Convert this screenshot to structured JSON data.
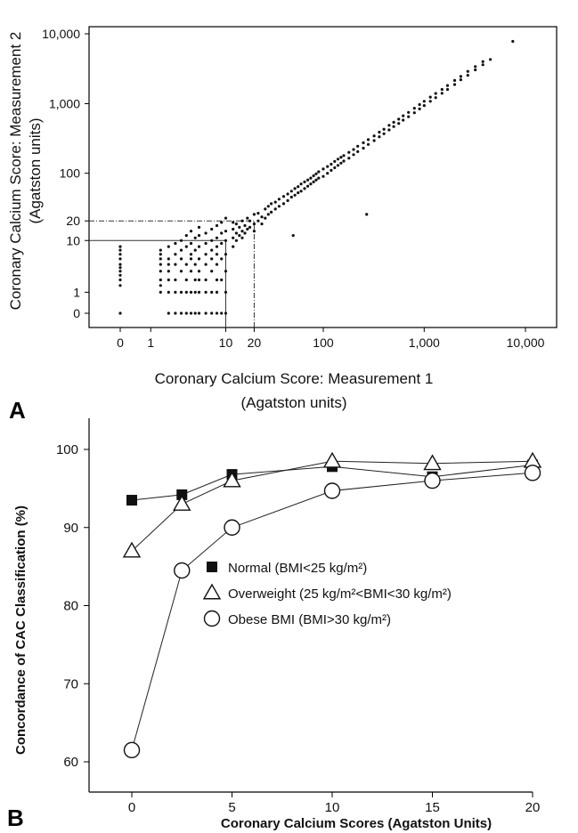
{
  "chart_data": [
    {
      "panel": "A",
      "type": "scatter",
      "xlabel": "Coronary Calcium Score: Measurement 1",
      "xlabel_units": "(Agatston units)",
      "ylabel": "Coronary Calcium Score: Measurement 2",
      "ylabel_units": "(Agatston units)",
      "x_scale": "log1p",
      "y_scale": "log1p",
      "x_ticks": [
        {
          "value": 0,
          "label": "0"
        },
        {
          "value": 1,
          "label": "1"
        },
        {
          "value": 10,
          "label": "10"
        },
        {
          "value": 20,
          "label": "20"
        },
        {
          "value": 100,
          "label": "100"
        },
        {
          "value": 1000,
          "label": "1,000"
        },
        {
          "value": 10000,
          "label": "10,000"
        }
      ],
      "y_ticks": [
        {
          "value": 0,
          "label": "0"
        },
        {
          "value": 1,
          "label": "1"
        },
        {
          "value": 10,
          "label": "10"
        },
        {
          "value": 20,
          "label": "20"
        },
        {
          "value": 100,
          "label": "100"
        },
        {
          "value": 1000,
          "label": "1,000"
        },
        {
          "value": 10000,
          "label": "10,000"
        }
      ],
      "xlim": [
        0,
        10000
      ],
      "ylim": [
        0,
        10000
      ],
      "reference_lines": [
        {
          "axis": "x",
          "value": 10,
          "style": "solid"
        },
        {
          "axis": "x",
          "value": 20,
          "style": "dash-dot"
        },
        {
          "axis": "y",
          "value": 10,
          "style": "solid"
        },
        {
          "axis": "y",
          "value": 20,
          "style": "dash-dot"
        }
      ],
      "points": [
        [
          0,
          0
        ],
        [
          0,
          1.5
        ],
        [
          0,
          2
        ],
        [
          0,
          2.5
        ],
        [
          0,
          3
        ],
        [
          0,
          3.5
        ],
        [
          0,
          4
        ],
        [
          0,
          5
        ],
        [
          0,
          6
        ],
        [
          0,
          7
        ],
        [
          0,
          8
        ],
        [
          1.5,
          1
        ],
        [
          1.5,
          1.5
        ],
        [
          1.5,
          2
        ],
        [
          1.5,
          3
        ],
        [
          1.5,
          4
        ],
        [
          1.5,
          5
        ],
        [
          1.5,
          6
        ],
        [
          1.5,
          7
        ],
        [
          2,
          0
        ],
        [
          2,
          1
        ],
        [
          2,
          2
        ],
        [
          2,
          3
        ],
        [
          2,
          4
        ],
        [
          2,
          5
        ],
        [
          2,
          8
        ],
        [
          2.5,
          0
        ],
        [
          2.5,
          1
        ],
        [
          2.5,
          2
        ],
        [
          2.5,
          4
        ],
        [
          2.5,
          6
        ],
        [
          2.5,
          9
        ],
        [
          3,
          0
        ],
        [
          3,
          1
        ],
        [
          3,
          3
        ],
        [
          3,
          5
        ],
        [
          3,
          7
        ],
        [
          3,
          10
        ],
        [
          3.5,
          0
        ],
        [
          3.5,
          1
        ],
        [
          3.5,
          2
        ],
        [
          3.5,
          4
        ],
        [
          3.5,
          8
        ],
        [
          3.5,
          12
        ],
        [
          4,
          0
        ],
        [
          4,
          1
        ],
        [
          4,
          3
        ],
        [
          4,
          5
        ],
        [
          4,
          6
        ],
        [
          4,
          9
        ],
        [
          4,
          14
        ],
        [
          4.5,
          0
        ],
        [
          4.5,
          1
        ],
        [
          4.5,
          2
        ],
        [
          4.5,
          4
        ],
        [
          4.5,
          7
        ],
        [
          4.5,
          11
        ],
        [
          5,
          0
        ],
        [
          5,
          1
        ],
        [
          5,
          2
        ],
        [
          5,
          3
        ],
        [
          5,
          5
        ],
        [
          5,
          8
        ],
        [
          5,
          12
        ],
        [
          5,
          16
        ],
        [
          6,
          0
        ],
        [
          6,
          1
        ],
        [
          6,
          2
        ],
        [
          6,
          4
        ],
        [
          6,
          6
        ],
        [
          6,
          9
        ],
        [
          6,
          13
        ],
        [
          7,
          0
        ],
        [
          7,
          1
        ],
        [
          7,
          3
        ],
        [
          7,
          5
        ],
        [
          7,
          7
        ],
        [
          7,
          10
        ],
        [
          7,
          15
        ],
        [
          8,
          0
        ],
        [
          8,
          1
        ],
        [
          8,
          2
        ],
        [
          8,
          4
        ],
        [
          8,
          6
        ],
        [
          8,
          8
        ],
        [
          8,
          11
        ],
        [
          8,
          17
        ],
        [
          9,
          0
        ],
        [
          9,
          2
        ],
        [
          9,
          5
        ],
        [
          9,
          9
        ],
        [
          9,
          13
        ],
        [
          9,
          19
        ],
        [
          10,
          0
        ],
        [
          10,
          1
        ],
        [
          10,
          3
        ],
        [
          10,
          6
        ],
        [
          10,
          10
        ],
        [
          10,
          14
        ],
        [
          10,
          22
        ],
        [
          12,
          8
        ],
        [
          12,
          11
        ],
        [
          12,
          15
        ],
        [
          12,
          19
        ],
        [
          13,
          10
        ],
        [
          13,
          13
        ],
        [
          13,
          18
        ],
        [
          14,
          12
        ],
        [
          14,
          16
        ],
        [
          15,
          11
        ],
        [
          15,
          14
        ],
        [
          15,
          20
        ],
        [
          16,
          13
        ],
        [
          16,
          17
        ],
        [
          17,
          15
        ],
        [
          17,
          22
        ],
        [
          18,
          16
        ],
        [
          18,
          20
        ],
        [
          20,
          14
        ],
        [
          20,
          18
        ],
        [
          20,
          25
        ],
        [
          22,
          20
        ],
        [
          22,
          26
        ],
        [
          24,
          18
        ],
        [
          24,
          23
        ],
        [
          26,
          22
        ],
        [
          26,
          30
        ],
        [
          28,
          25
        ],
        [
          28,
          33
        ],
        [
          30,
          27
        ],
        [
          30,
          36
        ],
        [
          33,
          30
        ],
        [
          33,
          38
        ],
        [
          36,
          33
        ],
        [
          36,
          42
        ],
        [
          40,
          36
        ],
        [
          40,
          46
        ],
        [
          44,
          40
        ],
        [
          44,
          50
        ],
        [
          48,
          45
        ],
        [
          48,
          55
        ],
        [
          50,
          12
        ],
        [
          52,
          48
        ],
        [
          52,
          60
        ],
        [
          56,
          52
        ],
        [
          56,
          64
        ],
        [
          60,
          55
        ],
        [
          60,
          70
        ],
        [
          65,
          60
        ],
        [
          65,
          75
        ],
        [
          70,
          65
        ],
        [
          70,
          80
        ],
        [
          75,
          70
        ],
        [
          75,
          85
        ],
        [
          80,
          75
        ],
        [
          80,
          92
        ],
        [
          85,
          80
        ],
        [
          85,
          98
        ],
        [
          90,
          85
        ],
        [
          90,
          105
        ],
        [
          100,
          90
        ],
        [
          100,
          115
        ],
        [
          110,
          100
        ],
        [
          110,
          125
        ],
        [
          120,
          110
        ],
        [
          120,
          135
        ],
        [
          130,
          120
        ],
        [
          130,
          148
        ],
        [
          140,
          130
        ],
        [
          140,
          160
        ],
        [
          150,
          140
        ],
        [
          150,
          170
        ],
        [
          160,
          150
        ],
        [
          160,
          180
        ],
        [
          180,
          165
        ],
        [
          180,
          200
        ],
        [
          200,
          185
        ],
        [
          200,
          220
        ],
        [
          220,
          205
        ],
        [
          220,
          245
        ],
        [
          250,
          230
        ],
        [
          250,
          275
        ],
        [
          270,
          25
        ],
        [
          280,
          260
        ],
        [
          280,
          305
        ],
        [
          320,
          295
        ],
        [
          320,
          345
        ],
        [
          360,
          335
        ],
        [
          360,
          390
        ],
        [
          400,
          370
        ],
        [
          400,
          430
        ],
        [
          450,
          420
        ],
        [
          450,
          490
        ],
        [
          500,
          470
        ],
        [
          500,
          540
        ],
        [
          560,
          520
        ],
        [
          560,
          600
        ],
        [
          620,
          580
        ],
        [
          620,
          670
        ],
        [
          700,
          650
        ],
        [
          700,
          750
        ],
        [
          800,
          740
        ],
        [
          800,
          860
        ],
        [
          900,
          840
        ],
        [
          900,
          970
        ],
        [
          1000,
          940
        ],
        [
          1000,
          1080
        ],
        [
          1150,
          1080
        ],
        [
          1150,
          1240
        ],
        [
          1300,
          1220
        ],
        [
          1300,
          1400
        ],
        [
          1500,
          1410
        ],
        [
          1500,
          1600
        ],
        [
          1700,
          1600
        ],
        [
          1700,
          1820
        ],
        [
          2000,
          1880
        ],
        [
          2000,
          2150
        ],
        [
          2300,
          2200
        ],
        [
          2300,
          2450
        ],
        [
          2700,
          2550
        ],
        [
          2700,
          2900
        ],
        [
          3200,
          3050
        ],
        [
          3200,
          3400
        ],
        [
          3800,
          3600
        ],
        [
          3800,
          4000
        ],
        [
          4500,
          4300
        ],
        [
          7500,
          7800
        ]
      ]
    },
    {
      "panel": "B",
      "type": "line",
      "xlabel": "Coronary Calcium Scores (Agatston Units)",
      "ylabel": "Concordance of CAC Classification (%)",
      "xlim": [
        0,
        20
      ],
      "ylim": [
        60,
        100
      ],
      "x_ticks": [
        0,
        5,
        10,
        15,
        20
      ],
      "y_ticks": [
        60,
        70,
        80,
        90,
        100
      ],
      "x_tick_labels": [
        "0",
        "5",
        "10",
        "15",
        "20"
      ],
      "y_tick_labels": [
        "60",
        "70",
        "80",
        "90",
        "100"
      ],
      "legend_position": "center-right",
      "series": [
        {
          "name": "Normal (BMI<25 kg/m²)",
          "marker": "filled-square",
          "x": [
            0,
            2.5,
            5,
            10,
            15,
            20
          ],
          "y": [
            93.5,
            94.2,
            96.8,
            97.8,
            96.5,
            98.0
          ]
        },
        {
          "name": "Overweight (25 kg/m²<BMI<30 kg/m²)",
          "marker": "open-triangle",
          "x": [
            0,
            2.5,
            5,
            10,
            15,
            20
          ],
          "y": [
            87,
            93,
            96,
            98.5,
            98.2,
            98.5
          ]
        },
        {
          "name": "Obese BMI (BMI>30 kg/m²)",
          "marker": "open-circle",
          "x": [
            0,
            2.5,
            5,
            10,
            15,
            20
          ],
          "y": [
            61.5,
            84.5,
            90,
            94.7,
            96,
            97
          ]
        }
      ]
    }
  ],
  "panel_labels": [
    "A",
    "B"
  ]
}
